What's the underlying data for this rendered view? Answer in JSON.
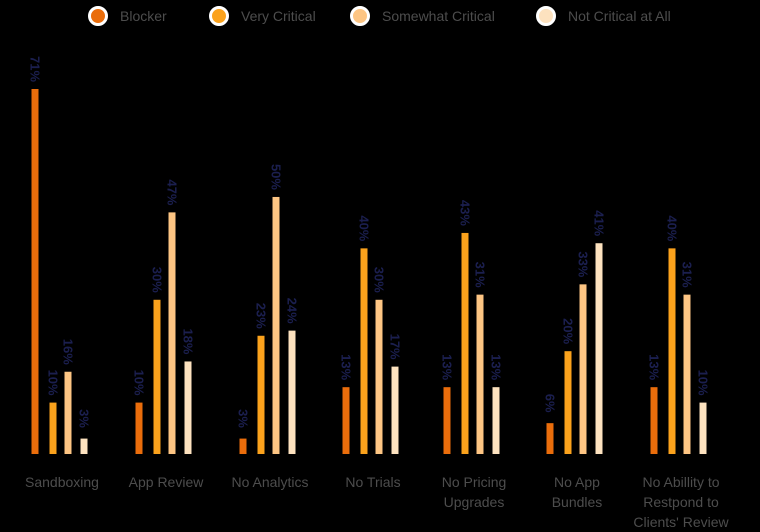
{
  "chart_data": {
    "type": "bar",
    "categories": [
      [
        "Sandboxing"
      ],
      [
        "App Review"
      ],
      [
        "No Analytics"
      ],
      [
        "No Trials"
      ],
      [
        "No Pricing",
        "Upgrades"
      ],
      [
        "No App",
        "Bundles"
      ],
      [
        "No Abillity to",
        "Restpond to",
        "Clients' Review"
      ]
    ],
    "series": [
      {
        "name": "Blocker",
        "color": "#ea6d0b",
        "values": [
          71,
          10,
          3,
          13,
          13,
          6,
          13
        ],
        "labels": [
          "71%",
          "10%",
          "3%",
          "13%",
          "13%",
          "6%",
          "13%"
        ]
      },
      {
        "name": "Very Critical",
        "color": "#fba21c",
        "values": [
          10,
          30,
          23,
          40,
          43,
          20,
          40
        ],
        "labels": [
          "10%",
          "30%",
          "23%",
          "40%",
          "43%",
          "20%",
          "40%"
        ]
      },
      {
        "name": "Somewhat Critical",
        "color": "#fdc583",
        "values": [
          16,
          47,
          50,
          30,
          31,
          33,
          31
        ],
        "labels": [
          "16%",
          "47%",
          "50%",
          "30%",
          "31%",
          "33%",
          "31%"
        ]
      },
      {
        "name": "Not Critical at All",
        "color": "#fde2bf",
        "values": [
          3,
          18,
          24,
          17,
          13,
          41,
          10
        ],
        "labels": [
          "3%",
          "18%",
          "24%",
          "17%",
          "13%",
          "41%",
          "10%"
        ]
      }
    ],
    "ylim": [
      0,
      71
    ],
    "grid": false,
    "legend_position": "top",
    "data_label_color": "#1b1f4f",
    "category_label_color": "#4d4d4d"
  }
}
